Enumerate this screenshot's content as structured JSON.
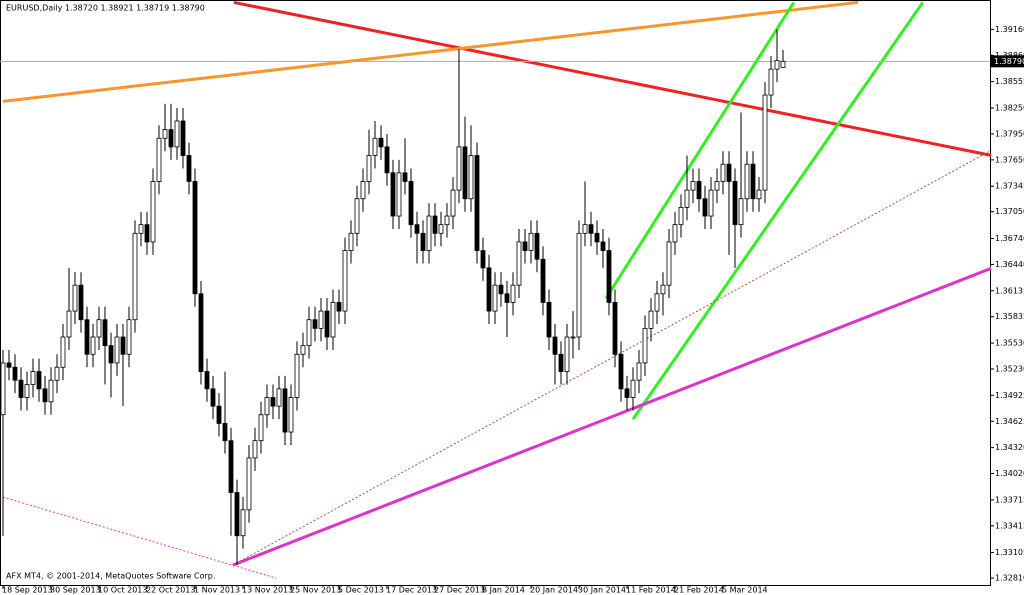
{
  "chart_data": {
    "type": "candlestick",
    "title": "EURUSD,Daily  1.38720 1.38921 1.38719 1.38790",
    "footer": "AFX MT4, © 2001-2014, MetaQuotes Software Corp.",
    "current_price_label": "1.38790",
    "up_color": "#ffffff",
    "down_color": "#000000",
    "ylim": [
      1.3273,
      1.395
    ],
    "yticks": [
      {
        "value": 1.3916,
        "label": "1.39160"
      },
      {
        "value": 1.3886,
        "label": "1.38860"
      },
      1.38555,
      {
        "value": 1.3825,
        "label": "1.38250"
      },
      {
        "value": 1.3795,
        "label": "1.37950"
      },
      {
        "value": 1.3765,
        "label": "1.37650"
      },
      1.37345,
      {
        "value": 1.3705,
        "label": "1.37050"
      },
      {
        "value": 1.3674,
        "label": "1.36740"
      },
      {
        "value": 1.3644,
        "label": "1.36440"
      },
      1.36135,
      1.35835,
      {
        "value": 1.3553,
        "label": "1.35530"
      },
      {
        "value": 1.3523,
        "label": "1.35230"
      },
      1.34925,
      1.34625,
      {
        "value": 1.3432,
        "label": "1.34320"
      },
      {
        "value": 1.3402,
        "label": "1.34020"
      },
      1.33715,
      1.33415,
      1.33105,
      {
        "value": 1.3281,
        "label": "1.32810"
      }
    ],
    "categories": [
      "18 Sep 2013",
      null,
      null,
      null,
      null,
      null,
      null,
      null,
      "30 Sep 2013",
      null,
      null,
      null,
      null,
      null,
      null,
      null,
      "10 Oct 2013",
      null,
      null,
      null,
      null,
      null,
      null,
      null,
      "22 Oct 2013",
      null,
      null,
      null,
      null,
      null,
      null,
      null,
      "1 Nov 2013",
      null,
      null,
      null,
      null,
      null,
      null,
      null,
      "13 Nov 2013",
      null,
      null,
      null,
      null,
      null,
      null,
      null,
      "25 Nov 2013",
      null,
      null,
      null,
      null,
      null,
      null,
      null,
      "5 Dec 2013",
      null,
      null,
      null,
      null,
      null,
      null,
      null,
      "17 Dec 2013",
      null,
      null,
      null,
      null,
      null,
      null,
      null,
      "27 Dec 2013",
      null,
      null,
      null,
      null,
      null,
      null,
      null,
      "8 Jan 2014",
      null,
      null,
      null,
      null,
      null,
      null,
      null,
      "20 Jan 2014",
      null,
      null,
      null,
      null,
      null,
      null,
      null,
      "30 Jan 2014",
      null,
      null,
      null,
      null,
      null,
      null,
      null,
      "11 Feb 2014",
      null,
      null,
      null,
      null,
      null,
      null,
      null,
      "21 Feb 2014",
      null,
      null,
      null,
      null,
      null,
      null,
      null,
      "5 Mar 2014",
      null,
      null,
      null,
      null,
      null,
      null,
      null,
      null,
      null,
      null
    ],
    "ohlc": [
      [
        1.347,
        1.3545,
        1.333,
        1.353
      ],
      [
        1.353,
        1.3545,
        1.351,
        1.3525
      ],
      [
        1.3525,
        1.354,
        1.3495,
        1.351
      ],
      [
        1.351,
        1.3525,
        1.3475,
        1.349
      ],
      [
        1.349,
        1.352,
        1.3475,
        1.3505
      ],
      [
        1.3505,
        1.3535,
        1.349,
        1.352
      ],
      [
        1.352,
        1.3535,
        1.3485,
        1.35
      ],
      [
        1.35,
        1.3515,
        1.347,
        1.3485
      ],
      [
        1.3485,
        1.3525,
        1.347,
        1.351
      ],
      [
        1.351,
        1.354,
        1.3495,
        1.3525
      ],
      [
        1.3525,
        1.3575,
        1.351,
        1.356
      ],
      [
        1.356,
        1.364,
        1.3545,
        1.359
      ],
      [
        1.359,
        1.3635,
        1.3575,
        1.362
      ],
      [
        1.362,
        1.3635,
        1.3565,
        1.358
      ],
      [
        1.358,
        1.3595,
        1.3525,
        1.354
      ],
      [
        1.354,
        1.3575,
        1.3525,
        1.356
      ],
      [
        1.356,
        1.3595,
        1.3545,
        1.358
      ],
      [
        1.358,
        1.3595,
        1.3505,
        1.355
      ],
      [
        1.355,
        1.3565,
        1.349,
        1.353
      ],
      [
        1.353,
        1.3575,
        1.3515,
        1.356
      ],
      [
        1.356,
        1.3575,
        1.348,
        1.354
      ],
      [
        1.354,
        1.3595,
        1.3525,
        1.358
      ],
      [
        1.358,
        1.3695,
        1.3565,
        1.368
      ],
      [
        1.368,
        1.3705,
        1.3665,
        1.369
      ],
      [
        1.369,
        1.3705,
        1.3655,
        1.367
      ],
      [
        1.367,
        1.3755,
        1.3655,
        1.374
      ],
      [
        1.374,
        1.3805,
        1.3725,
        1.379
      ],
      [
        1.379,
        1.383,
        1.3775,
        1.38
      ],
      [
        1.38,
        1.383,
        1.3765,
        1.378
      ],
      [
        1.378,
        1.3825,
        1.3765,
        1.381
      ],
      [
        1.381,
        1.3825,
        1.3755,
        1.377
      ],
      [
        1.377,
        1.3785,
        1.3725,
        1.374
      ],
      [
        1.374,
        1.3755,
        1.3595,
        1.361
      ],
      [
        1.361,
        1.3625,
        1.3505,
        1.352
      ],
      [
        1.352,
        1.3535,
        1.3485,
        1.35
      ],
      [
        1.35,
        1.3515,
        1.3465,
        1.348
      ],
      [
        1.348,
        1.3495,
        1.3445,
        1.346
      ],
      [
        1.346,
        1.352,
        1.3425,
        1.344
      ],
      [
        1.344,
        1.3455,
        1.333,
        1.338
      ],
      [
        1.338,
        1.3395,
        1.3296,
        1.333
      ],
      [
        1.333,
        1.3375,
        1.3315,
        1.336
      ],
      [
        1.336,
        1.3435,
        1.3345,
        1.342
      ],
      [
        1.342,
        1.3455,
        1.3405,
        1.344
      ],
      [
        1.344,
        1.3485,
        1.3425,
        1.347
      ],
      [
        1.347,
        1.3505,
        1.3455,
        1.349
      ],
      [
        1.349,
        1.3505,
        1.3465,
        1.348
      ],
      [
        1.348,
        1.3515,
        1.3465,
        1.35
      ],
      [
        1.35,
        1.3515,
        1.3435,
        1.345
      ],
      [
        1.345,
        1.3505,
        1.3435,
        1.349
      ],
      [
        1.349,
        1.3555,
        1.3475,
        1.354
      ],
      [
        1.354,
        1.3565,
        1.3525,
        1.355
      ],
      [
        1.355,
        1.3595,
        1.3535,
        1.358
      ],
      [
        1.358,
        1.3595,
        1.3555,
        1.357
      ],
      [
        1.357,
        1.3605,
        1.3555,
        1.359
      ],
      [
        1.359,
        1.3605,
        1.3545,
        1.356
      ],
      [
        1.356,
        1.3615,
        1.3545,
        1.36
      ],
      [
        1.36,
        1.3615,
        1.3575,
        1.359
      ],
      [
        1.359,
        1.3675,
        1.3575,
        1.366
      ],
      [
        1.366,
        1.3695,
        1.3645,
        1.368
      ],
      [
        1.368,
        1.3735,
        1.3665,
        1.372
      ],
      [
        1.372,
        1.3755,
        1.3705,
        1.374
      ],
      [
        1.374,
        1.38,
        1.3725,
        1.377
      ],
      [
        1.377,
        1.381,
        1.3755,
        1.379
      ],
      [
        1.379,
        1.3805,
        1.3765,
        1.378
      ],
      [
        1.378,
        1.3795,
        1.3735,
        1.375
      ],
      [
        1.375,
        1.3765,
        1.3685,
        1.37
      ],
      [
        1.37,
        1.3765,
        1.3685,
        1.375
      ],
      [
        1.375,
        1.379,
        1.3725,
        1.374
      ],
      [
        1.374,
        1.3755,
        1.3675,
        1.369
      ],
      [
        1.369,
        1.3705,
        1.3645,
        1.368
      ],
      [
        1.368,
        1.3695,
        1.3645,
        1.366
      ],
      [
        1.366,
        1.3715,
        1.3645,
        1.37
      ],
      [
        1.37,
        1.3715,
        1.3665,
        1.368
      ],
      [
        1.368,
        1.3705,
        1.3665,
        1.369
      ],
      [
        1.369,
        1.3715,
        1.3675,
        1.37
      ],
      [
        1.37,
        1.3745,
        1.3685,
        1.373
      ],
      [
        1.373,
        1.3893,
        1.3715,
        1.378
      ],
      [
        1.378,
        1.3815,
        1.3705,
        1.372
      ],
      [
        1.372,
        1.3805,
        1.3705,
        1.377
      ],
      [
        1.377,
        1.3785,
        1.3645,
        1.366
      ],
      [
        1.366,
        1.3675,
        1.3625,
        1.364
      ],
      [
        1.364,
        1.3655,
        1.3575,
        1.359
      ],
      [
        1.359,
        1.3635,
        1.3575,
        1.362
      ],
      [
        1.362,
        1.3635,
        1.3595,
        1.361
      ],
      [
        1.361,
        1.3625,
        1.356,
        1.36
      ],
      [
        1.36,
        1.3635,
        1.3585,
        1.362
      ],
      [
        1.362,
        1.3685,
        1.3605,
        1.367
      ],
      [
        1.367,
        1.3685,
        1.3645,
        1.366
      ],
      [
        1.366,
        1.3695,
        1.3645,
        1.368
      ],
      [
        1.368,
        1.3695,
        1.3635,
        1.365
      ],
      [
        1.365,
        1.3665,
        1.3585,
        1.36
      ],
      [
        1.36,
        1.3615,
        1.3545,
        1.356
      ],
      [
        1.356,
        1.3575,
        1.3505,
        1.354
      ],
      [
        1.354,
        1.3555,
        1.3505,
        1.352
      ],
      [
        1.352,
        1.3575,
        1.3505,
        1.356
      ],
      [
        1.356,
        1.359,
        1.3535,
        1.356
      ],
      [
        1.356,
        1.3695,
        1.3545,
        1.368
      ],
      [
        1.368,
        1.374,
        1.3665,
        1.369
      ],
      [
        1.369,
        1.3705,
        1.3665,
        1.368
      ],
      [
        1.368,
        1.3695,
        1.3655,
        1.367
      ],
      [
        1.367,
        1.3685,
        1.364,
        1.366
      ],
      [
        1.366,
        1.3675,
        1.3585,
        1.36
      ],
      [
        1.36,
        1.3615,
        1.3525,
        1.354
      ],
      [
        1.354,
        1.3555,
        1.3485,
        1.35
      ],
      [
        1.35,
        1.3515,
        1.3475,
        1.349
      ],
      [
        1.349,
        1.3525,
        1.3475,
        1.351
      ],
      [
        1.351,
        1.3545,
        1.3495,
        1.353
      ],
      [
        1.353,
        1.3585,
        1.3515,
        1.357
      ],
      [
        1.357,
        1.3605,
        1.3555,
        1.359
      ],
      [
        1.359,
        1.3625,
        1.3575,
        1.361
      ],
      [
        1.361,
        1.3635,
        1.3585,
        1.362
      ],
      [
        1.362,
        1.3685,
        1.3605,
        1.367
      ],
      [
        1.367,
        1.3705,
        1.3655,
        1.369
      ],
      [
        1.369,
        1.3725,
        1.3675,
        1.371
      ],
      [
        1.371,
        1.377,
        1.3695,
        1.373
      ],
      [
        1.373,
        1.3755,
        1.3715,
        1.374
      ],
      [
        1.374,
        1.3755,
        1.3705,
        1.372
      ],
      [
        1.372,
        1.3735,
        1.3685,
        1.37
      ],
      [
        1.37,
        1.3745,
        1.3685,
        1.373
      ],
      [
        1.373,
        1.3755,
        1.3715,
        1.374
      ],
      [
        1.374,
        1.3775,
        1.3725,
        1.376
      ],
      [
        1.376,
        1.3775,
        1.3655,
        1.374
      ],
      [
        1.374,
        1.3755,
        1.364,
        1.369
      ],
      [
        1.369,
        1.382,
        1.3675,
        1.372
      ],
      [
        1.372,
        1.3775,
        1.3705,
        1.376
      ],
      [
        1.376,
        1.3775,
        1.3705,
        1.372
      ],
      [
        1.372,
        1.3745,
        1.3705,
        1.373
      ],
      [
        1.373,
        1.3855,
        1.3715,
        1.384
      ],
      [
        1.384,
        1.3885,
        1.3825,
        1.387
      ],
      [
        1.387,
        1.3916,
        1.3855,
        1.388
      ],
      [
        1.3872,
        1.38921,
        1.38719,
        1.3879
      ]
    ],
    "trendlines": [
      {
        "color": "#ee2222",
        "x": [
          38.5,
          164.7
        ],
        "y": [
          1.39472,
          1.37702
        ]
      },
      {
        "color": "#f7962a",
        "x": [
          0,
          142.5
        ],
        "y": [
          1.38327,
          1.39472
        ]
      },
      {
        "color": "#33ee22",
        "x": [
          100.5,
          131.8
        ],
        "y": [
          1.36048,
          1.39472
        ]
      },
      {
        "color": "#33ee22",
        "x": [
          105,
          153.3
        ],
        "y": [
          1.34649,
          1.39472
        ]
      },
      {
        "color": "#dd33cc",
        "x": [
          38.3,
          164.7
        ],
        "y": [
          1.3296,
          1.36395
        ]
      },
      {
        "color": "#b0553a",
        "dash": true,
        "x": [
          38.3,
          164.7
        ],
        "y": [
          1.3296,
          1.3776
        ]
      },
      {
        "color": "#dd33cc",
        "dash": true,
        "x": [
          0,
          45.5
        ],
        "y": [
          1.33747,
          1.3281
        ]
      }
    ]
  }
}
